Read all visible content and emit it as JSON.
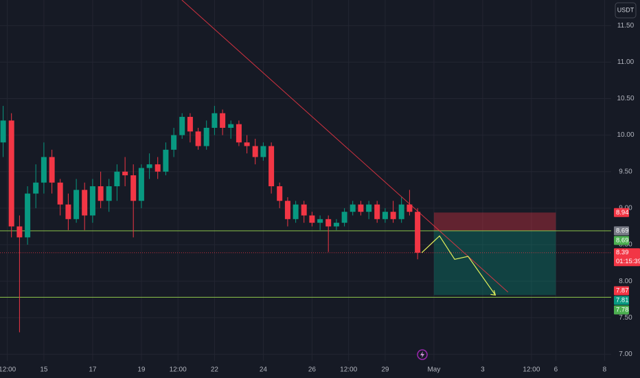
{
  "chart_data": {
    "type": "candlestick",
    "currency": "USDT",
    "up_color": "#089981",
    "down_color": "#f23645",
    "grid": true,
    "xlim": [
      13.2,
      38.27
    ],
    "ylim": [
      6.91,
      11.85
    ],
    "xticks": [
      {
        "value": 13.5,
        "label": "12:00"
      },
      15,
      17,
      19,
      {
        "value": 20.5,
        "label": "12:00"
      },
      22,
      24,
      26,
      {
        "value": 27.5,
        "label": "12:00"
      },
      29,
      {
        "value": 31,
        "label": "May"
      },
      {
        "value": 33,
        "label": "3"
      },
      {
        "value": 35,
        "label": "12:00"
      },
      {
        "value": 36,
        "label": "6"
      },
      {
        "value": 38,
        "label": "8"
      }
    ],
    "yticks": [
      {
        "value": 7,
        "label": "7.00"
      },
      {
        "value": 7.5,
        "label": "7.50"
      },
      {
        "value": 8,
        "label": "8.00"
      },
      {
        "value": 8.5,
        "label": "8.50"
      },
      {
        "value": 9,
        "label": "9.00"
      },
      {
        "value": 9.5,
        "label": "9.50"
      },
      {
        "value": 10,
        "label": "10.00"
      },
      {
        "value": 10.5,
        "label": "10.50"
      },
      {
        "value": 11,
        "label": "11.00"
      },
      {
        "value": 11.5,
        "label": "11.50"
      }
    ],
    "x": [
      13.33,
      13.67,
      14.0,
      14.33,
      14.67,
      15.0,
      15.33,
      15.67,
      16.0,
      16.33,
      16.67,
      17.0,
      17.33,
      17.67,
      18.0,
      18.33,
      18.67,
      19.0,
      19.33,
      19.67,
      20.0,
      20.33,
      20.67,
      21.0,
      21.33,
      21.67,
      22.0,
      22.33,
      22.67,
      23.0,
      23.33,
      23.67,
      24.0,
      24.33,
      24.67,
      25.0,
      25.33,
      25.67,
      26.0,
      26.33,
      26.67,
      27.0,
      27.33,
      27.67,
      28.0,
      28.33,
      28.67,
      29.0,
      29.33,
      29.67,
      30.0,
      30.33
    ],
    "open": [
      9.9,
      10.2,
      8.75,
      8.6,
      9.2,
      9.35,
      9.7,
      9.35,
      9.05,
      8.85,
      9.25,
      8.9,
      9.3,
      9.1,
      9.3,
      9.5,
      9.45,
      9.1,
      9.55,
      9.6,
      9.5,
      9.8,
      10.0,
      10.25,
      10.05,
      9.85,
      10.1,
      10.3,
      10.1,
      10.15,
      9.9,
      9.85,
      9.7,
      9.85,
      9.3,
      9.1,
      8.85,
      9.05,
      8.9,
      8.8,
      8.85,
      8.75,
      8.8,
      8.95,
      9.05,
      8.95,
      9.05,
      8.85,
      8.95,
      8.85,
      9.05,
      8.95
    ],
    "high": [
      10.4,
      10.3,
      8.9,
      9.3,
      9.6,
      9.9,
      9.8,
      9.4,
      9.2,
      9.4,
      9.35,
      9.4,
      9.5,
      9.4,
      9.6,
      9.7,
      9.6,
      9.6,
      9.75,
      9.7,
      9.9,
      10.1,
      10.3,
      10.3,
      10.1,
      10.2,
      10.4,
      10.35,
      10.2,
      10.2,
      10.0,
      9.95,
      9.9,
      9.9,
      9.35,
      9.15,
      9.1,
      9.1,
      8.95,
      8.9,
      8.9,
      8.85,
      9.0,
      9.1,
      9.1,
      9.1,
      9.1,
      9.0,
      9.1,
      9.15,
      9.25,
      9.0
    ],
    "low": [
      9.7,
      8.6,
      7.3,
      8.5,
      9.0,
      9.2,
      9.2,
      8.9,
      8.7,
      8.8,
      8.7,
      8.8,
      9.0,
      8.95,
      9.1,
      9.3,
      8.6,
      9.0,
      9.4,
      9.4,
      9.45,
      9.7,
      9.95,
      9.9,
      9.8,
      9.8,
      10.0,
      10.0,
      9.95,
      9.85,
      9.75,
      9.6,
      9.65,
      9.2,
      9.0,
      8.75,
      8.8,
      8.8,
      8.75,
      8.7,
      8.4,
      8.7,
      8.75,
      8.9,
      8.9,
      8.85,
      8.8,
      8.8,
      8.8,
      8.8,
      8.9,
      8.3
    ],
    "close": [
      10.2,
      8.75,
      8.6,
      9.2,
      9.35,
      9.7,
      9.35,
      9.05,
      8.85,
      9.25,
      8.9,
      9.3,
      9.1,
      9.3,
      9.5,
      9.45,
      9.1,
      9.55,
      9.6,
      9.5,
      9.8,
      10.0,
      10.25,
      10.05,
      9.85,
      10.1,
      10.3,
      10.1,
      10.15,
      9.9,
      9.85,
      9.7,
      9.85,
      9.3,
      9.1,
      8.85,
      9.05,
      8.9,
      8.8,
      8.85,
      8.75,
      8.8,
      8.95,
      9.05,
      8.95,
      9.05,
      8.85,
      8.95,
      8.85,
      9.05,
      8.95,
      8.39
    ],
    "hlines": [
      {
        "value": 8.69,
        "color": "#8bc34a"
      },
      {
        "value": 7.78,
        "color": "#8bc34a"
      },
      {
        "value": 8.39,
        "color": "#f23645"
      }
    ],
    "trendline": {
      "x": [
        20.66,
        34.04
      ],
      "y": [
        11.85,
        7.85
      ],
      "color": "#f23645"
    },
    "projection": {
      "x": [
        30.5,
        31.23,
        31.85,
        32.4,
        33.52
      ],
      "y": [
        8.39,
        8.62,
        8.3,
        8.34,
        7.81
      ],
      "color": "#e2f05b"
    },
    "position": {
      "x": [
        31,
        36
      ],
      "entry": 8.69,
      "stop": 8.94,
      "target": 7.81
    },
    "price_tags": [
      {
        "value": 8.94,
        "color": "#f23645"
      },
      {
        "value": 8.69,
        "color": "#787b86"
      },
      {
        "value": 8.69,
        "color": "#4caf50"
      },
      {
        "value": 8.39,
        "color": "#f23645",
        "countdown": "01:15:39"
      },
      {
        "value": 7.87,
        "color": "#f23645"
      },
      {
        "value": 7.81,
        "color": "#089981"
      },
      {
        "value": 7.78,
        "color": "#4caf50"
      }
    ]
  }
}
